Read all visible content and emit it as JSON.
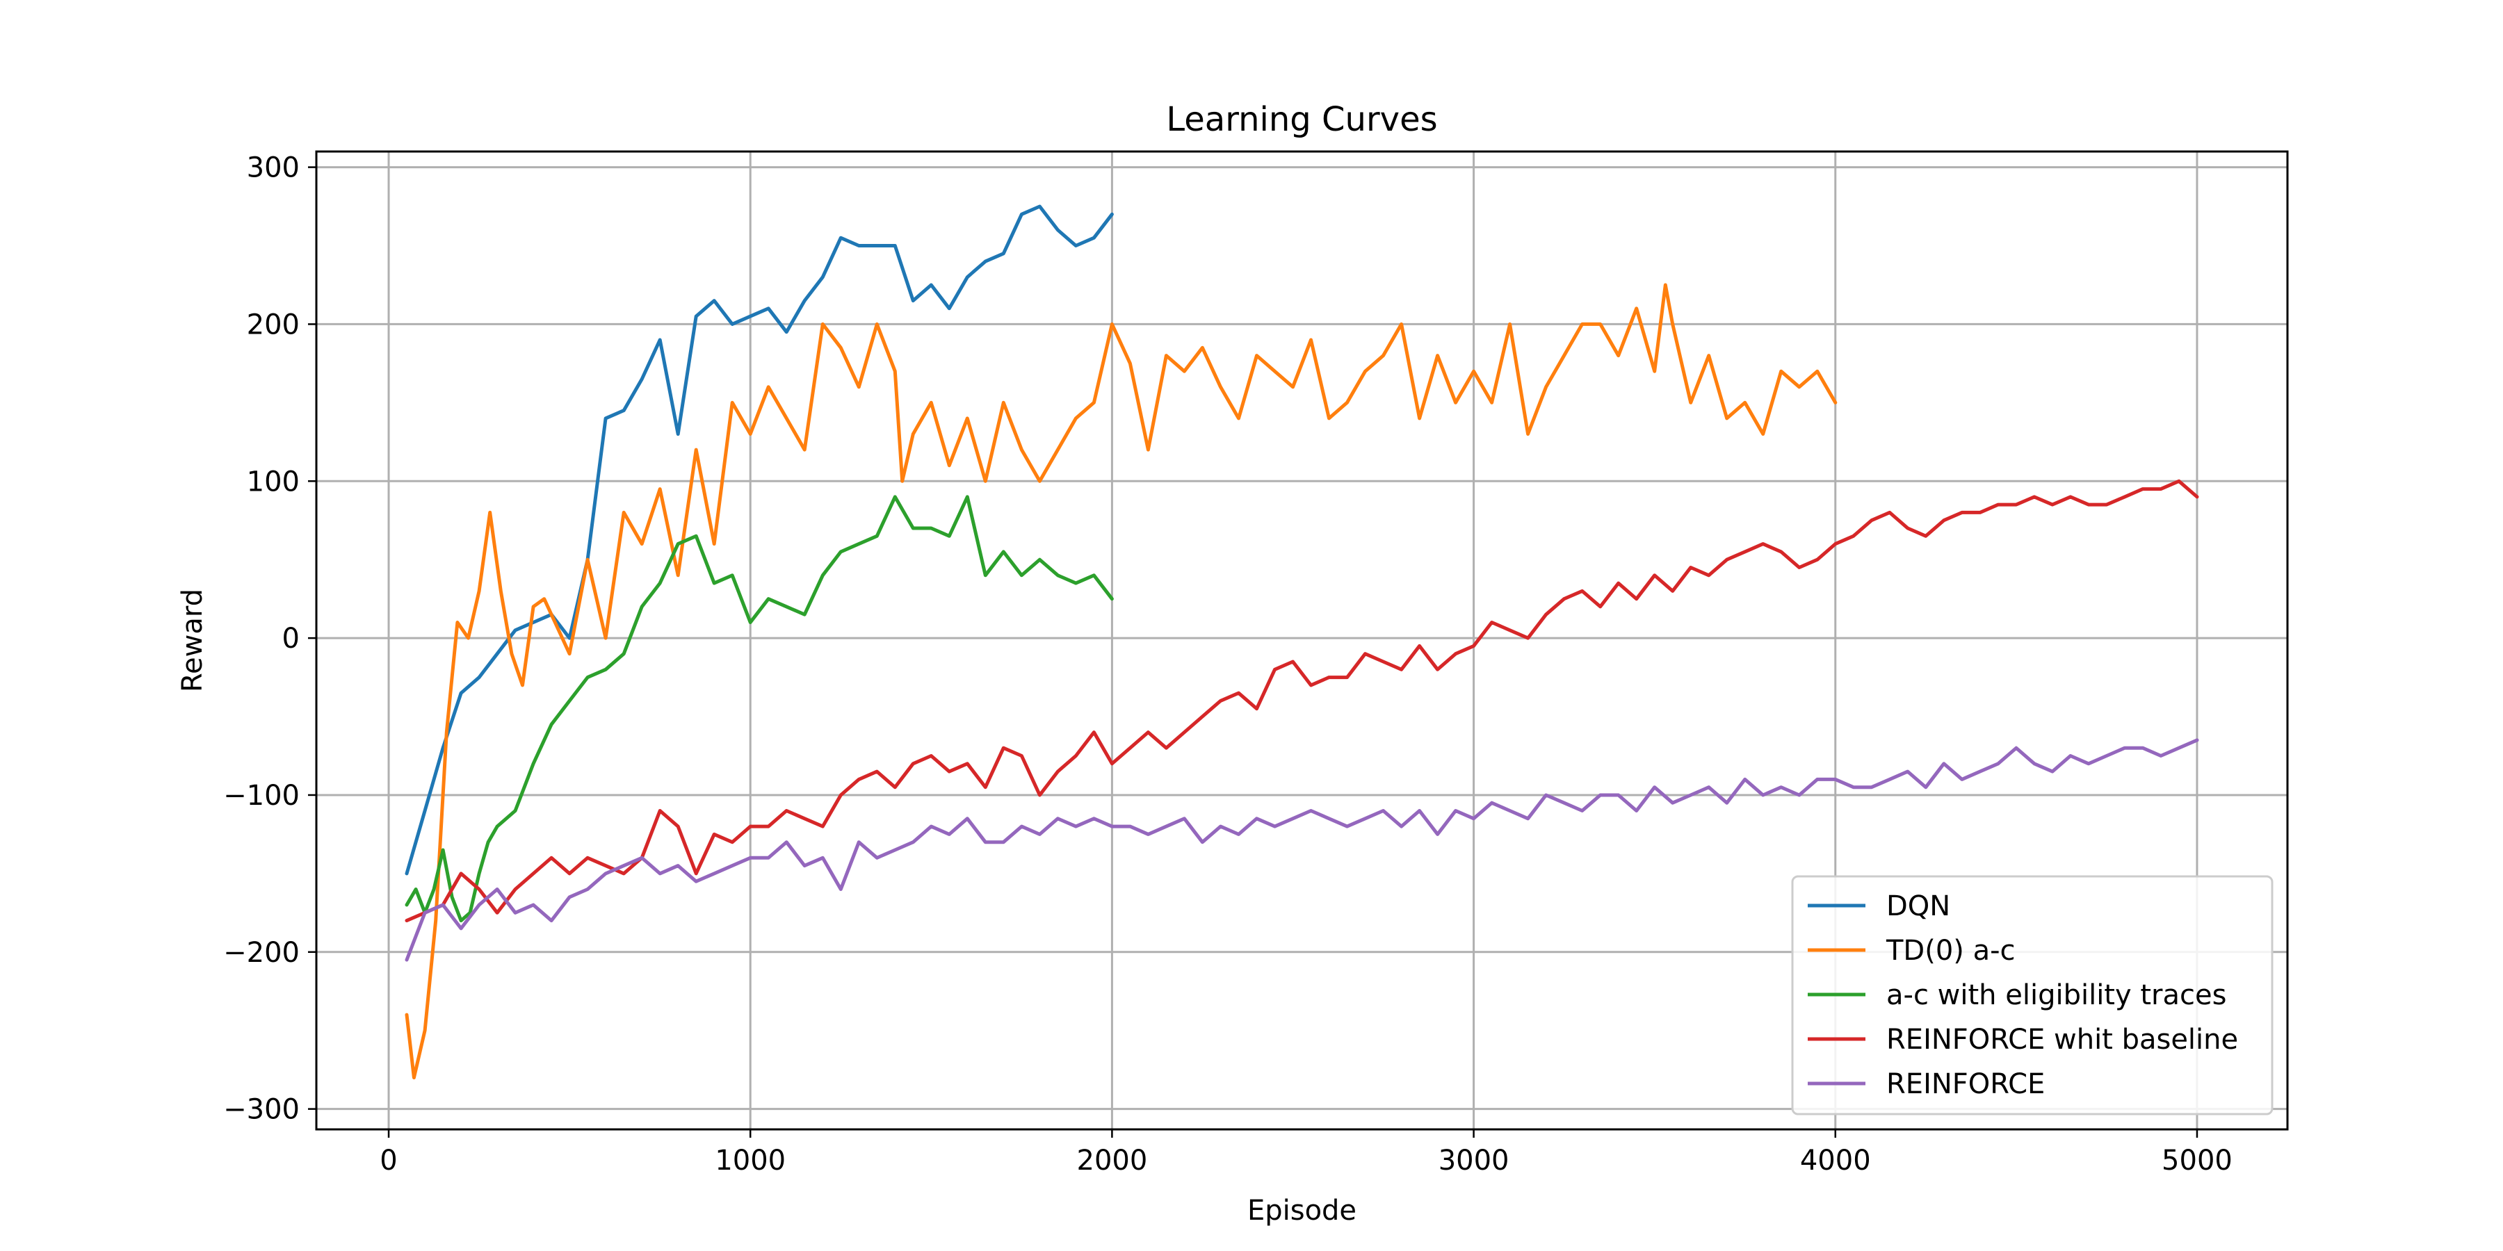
{
  "chart_data": {
    "type": "line",
    "title": "Learning Curves",
    "xlabel": "Episode",
    "ylabel": "Reward",
    "xlim": [
      -200,
      5250
    ],
    "ylim": [
      -313,
      310
    ],
    "xticks": [
      0,
      1000,
      2000,
      3000,
      4000,
      5000
    ],
    "yticks": [
      -300,
      -200,
      -100,
      0,
      100,
      200,
      300
    ],
    "xtick_labels": [
      "0",
      "1000",
      "2000",
      "3000",
      "4000",
      "5000"
    ],
    "ytick_labels": [
      "−300",
      "−200",
      "−100",
      "0",
      "100",
      "200",
      "300"
    ],
    "grid": true,
    "legend_position": "lower-right",
    "series": [
      {
        "name": "DQN",
        "color": "#1f77b4",
        "x": [
          50,
          100,
          150,
          200,
          250,
          300,
          350,
          400,
          450,
          500,
          550,
          600,
          650,
          700,
          750,
          800,
          850,
          900,
          950,
          1000,
          1050,
          1100,
          1150,
          1200,
          1250,
          1300,
          1350,
          1400,
          1450,
          1500,
          1550,
          1600,
          1650,
          1700,
          1750,
          1800,
          1850,
          1900,
          1950,
          2000
        ],
        "y": [
          -150,
          -110,
          -70,
          -35,
          -25,
          -10,
          5,
          10,
          15,
          0,
          50,
          140,
          145,
          165,
          190,
          130,
          205,
          215,
          200,
          205,
          210,
          195,
          215,
          230,
          255,
          250,
          250,
          250,
          215,
          225,
          210,
          230,
          240,
          245,
          270,
          275,
          260,
          250,
          255,
          270
        ]
      },
      {
        "name": "TD(0) a-c",
        "color": "#ff7f0e",
        "x": [
          50,
          70,
          100,
          130,
          160,
          190,
          220,
          250,
          280,
          310,
          340,
          370,
          400,
          430,
          460,
          500,
          550,
          600,
          650,
          700,
          750,
          800,
          850,
          900,
          950,
          1000,
          1050,
          1100,
          1150,
          1200,
          1250,
          1300,
          1350,
          1400,
          1420,
          1450,
          1500,
          1550,
          1600,
          1650,
          1700,
          1750,
          1800,
          1850,
          1900,
          1950,
          2000,
          2050,
          2100,
          2150,
          2200,
          2250,
          2300,
          2350,
          2400,
          2450,
          2500,
          2550,
          2600,
          2650,
          2700,
          2750,
          2800,
          2850,
          2900,
          2950,
          3000,
          3050,
          3100,
          3150,
          3200,
          3250,
          3300,
          3350,
          3400,
          3450,
          3500,
          3530,
          3550,
          3600,
          3650,
          3700,
          3750,
          3800,
          3850,
          3900,
          3950,
          4000
        ],
        "y": [
          -240,
          -280,
          -250,
          -180,
          -60,
          10,
          0,
          30,
          80,
          30,
          -10,
          -30,
          20,
          25,
          10,
          -10,
          50,
          0,
          80,
          60,
          95,
          40,
          120,
          60,
          150,
          130,
          160,
          140,
          120,
          200,
          185,
          160,
          200,
          170,
          100,
          130,
          150,
          110,
          140,
          100,
          150,
          120,
          100,
          120,
          140,
          150,
          200,
          175,
          120,
          180,
          170,
          185,
          160,
          140,
          180,
          170,
          160,
          190,
          140,
          150,
          170,
          180,
          200,
          140,
          180,
          150,
          170,
          150,
          200,
          130,
          160,
          180,
          200,
          200,
          180,
          210,
          170,
          225,
          200,
          150,
          180,
          140,
          150,
          130,
          170,
          160,
          170,
          150
        ]
      },
      {
        "name": "a-c with eligibility traces",
        "color": "#2ca02c",
        "x": [
          50,
          75,
          100,
          125,
          150,
          175,
          200,
          225,
          250,
          275,
          300,
          350,
          400,
          450,
          500,
          550,
          600,
          650,
          700,
          750,
          800,
          850,
          900,
          950,
          1000,
          1050,
          1100,
          1150,
          1200,
          1250,
          1300,
          1350,
          1400,
          1450,
          1500,
          1550,
          1600,
          1650,
          1700,
          1750,
          1800,
          1850,
          1900,
          1950,
          2000
        ],
        "y": [
          -170,
          -160,
          -175,
          -160,
          -135,
          -165,
          -180,
          -175,
          -150,
          -130,
          -120,
          -110,
          -80,
          -55,
          -40,
          -25,
          -20,
          -10,
          20,
          35,
          60,
          65,
          35,
          40,
          10,
          25,
          20,
          15,
          40,
          55,
          60,
          65,
          90,
          70,
          70,
          65,
          90,
          40,
          55,
          40,
          50,
          40,
          35,
          40,
          25
        ]
      },
      {
        "name": "REINFORCE whit baseline",
        "color": "#d62728",
        "x": [
          50,
          100,
          150,
          200,
          250,
          300,
          350,
          400,
          450,
          500,
          550,
          600,
          650,
          700,
          750,
          800,
          850,
          900,
          950,
          1000,
          1050,
          1100,
          1150,
          1200,
          1250,
          1300,
          1350,
          1400,
          1450,
          1500,
          1550,
          1600,
          1650,
          1700,
          1750,
          1800,
          1850,
          1900,
          1950,
          2000,
          2050,
          2100,
          2150,
          2200,
          2250,
          2300,
          2350,
          2400,
          2450,
          2500,
          2550,
          2600,
          2650,
          2700,
          2750,
          2800,
          2850,
          2900,
          2950,
          3000,
          3050,
          3100,
          3150,
          3200,
          3250,
          3300,
          3350,
          3400,
          3450,
          3500,
          3550,
          3600,
          3650,
          3700,
          3750,
          3800,
          3850,
          3900,
          3950,
          4000,
          4050,
          4100,
          4150,
          4200,
          4250,
          4300,
          4350,
          4400,
          4450,
          4500,
          4550,
          4600,
          4650,
          4700,
          4750,
          4800,
          4850,
          4900,
          4950,
          5000
        ],
        "y": [
          -180,
          -175,
          -170,
          -150,
          -160,
          -175,
          -160,
          -150,
          -140,
          -150,
          -140,
          -145,
          -150,
          -140,
          -110,
          -120,
          -150,
          -125,
          -130,
          -120,
          -120,
          -110,
          -115,
          -120,
          -100,
          -90,
          -85,
          -95,
          -80,
          -75,
          -85,
          -80,
          -95,
          -70,
          -75,
          -100,
          -85,
          -75,
          -60,
          -80,
          -70,
          -60,
          -70,
          -60,
          -50,
          -40,
          -35,
          -45,
          -20,
          -15,
          -30,
          -25,
          -25,
          -10,
          -15,
          -20,
          -5,
          -20,
          -10,
          -5,
          10,
          5,
          0,
          15,
          25,
          30,
          20,
          35,
          25,
          40,
          30,
          45,
          40,
          50,
          55,
          60,
          55,
          45,
          50,
          60,
          65,
          75,
          80,
          70,
          65,
          75,
          80,
          80,
          85,
          85,
          90,
          85,
          90,
          85,
          85,
          90,
          95,
          95,
          100,
          90
        ]
      },
      {
        "name": "REINFORCE",
        "color": "#9467bd",
        "x": [
          50,
          100,
          150,
          200,
          250,
          300,
          350,
          400,
          450,
          500,
          550,
          600,
          650,
          700,
          750,
          800,
          850,
          900,
          950,
          1000,
          1050,
          1100,
          1150,
          1200,
          1250,
          1300,
          1350,
          1400,
          1450,
          1500,
          1550,
          1600,
          1650,
          1700,
          1750,
          1800,
          1850,
          1900,
          1950,
          2000,
          2050,
          2100,
          2150,
          2200,
          2250,
          2300,
          2350,
          2400,
          2450,
          2500,
          2550,
          2600,
          2650,
          2700,
          2750,
          2800,
          2850,
          2900,
          2950,
          3000,
          3050,
          3100,
          3150,
          3200,
          3250,
          3300,
          3350,
          3400,
          3450,
          3500,
          3550,
          3600,
          3650,
          3700,
          3750,
          3800,
          3850,
          3900,
          3950,
          4000,
          4050,
          4100,
          4150,
          4200,
          4250,
          4300,
          4350,
          4400,
          4450,
          4500,
          4550,
          4600,
          4650,
          4700,
          4750,
          4800,
          4850,
          4900,
          4950,
          5000
        ],
        "y": [
          -205,
          -175,
          -170,
          -185,
          -170,
          -160,
          -175,
          -170,
          -180,
          -165,
          -160,
          -150,
          -145,
          -140,
          -150,
          -145,
          -155,
          -150,
          -145,
          -140,
          -140,
          -130,
          -145,
          -140,
          -160,
          -130,
          -140,
          -135,
          -130,
          -120,
          -125,
          -115,
          -130,
          -130,
          -120,
          -125,
          -115,
          -120,
          -115,
          -120,
          -120,
          -125,
          -120,
          -115,
          -130,
          -120,
          -125,
          -115,
          -120,
          -115,
          -110,
          -115,
          -120,
          -115,
          -110,
          -120,
          -110,
          -125,
          -110,
          -115,
          -105,
          -110,
          -115,
          -100,
          -105,
          -110,
          -100,
          -100,
          -110,
          -95,
          -105,
          -100,
          -95,
          -105,
          -90,
          -100,
          -95,
          -100,
          -90,
          -90,
          -95,
          -95,
          -90,
          -85,
          -95,
          -80,
          -90,
          -85,
          -80,
          -70,
          -80,
          -85,
          -75,
          -80,
          -75,
          -70,
          -70,
          -75,
          -70,
          -65
        ]
      }
    ]
  }
}
